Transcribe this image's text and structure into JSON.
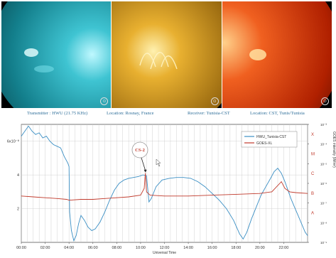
{
  "panels": [
    {
      "id": "sun-131",
      "base": "#0a3a40",
      "mid": "#1f9fb0",
      "hi": "#bff8ff",
      "badge": "⊙"
    },
    {
      "id": "sun-171",
      "base": "#3a2600",
      "mid": "#c8901a",
      "hi": "#fff1b0",
      "badge": "⊙"
    },
    {
      "id": "sun-304",
      "base": "#5a0c00",
      "mid": "#e0400c",
      "hi": "#ffd08a",
      "badge": "⊙"
    }
  ],
  "info": {
    "transmitter": "Transmitter : HWU (21.75 KHz)",
    "location_tx": "Location: Rosnay, France",
    "receiver": "Receiver: Tunisia-CST",
    "location_rx": "Location: CST, Tunis/Tunisia"
  },
  "chart_data": {
    "type": "line",
    "xlabel": "Universal Time",
    "xlim": [
      0,
      24
    ],
    "x_ticks": [
      "00:00",
      "02:00",
      "04:00",
      "06:00",
      "08:00",
      "10:00",
      "12:00",
      "14:00",
      "16:00",
      "18:00",
      "20:00",
      "22:00"
    ],
    "y_left_ticks": [
      {
        "label": "6x10⁻⁸",
        "value": 6
      },
      {
        "label": "4",
        "value": 4
      },
      {
        "label": "2",
        "value": 2
      }
    ],
    "y_left_lim": [
      0,
      7
    ],
    "y_right_label": "GOES intensity (W/m²)",
    "y_right_ticks": [
      "10⁻³",
      "10⁻⁴",
      "10⁻⁵",
      "10⁻⁶",
      "10⁻⁷",
      "10⁻⁸",
      "10⁻⁹"
    ],
    "y_right_class_letters": [
      {
        "label": "X",
        "color": "#c0392b"
      },
      {
        "label": "M",
        "color": "#c0392b"
      },
      {
        "label": "C",
        "color": "#c0392b"
      },
      {
        "label": "B",
        "color": "#c0392b"
      },
      {
        "label": "A",
        "color": "#c0392b"
      }
    ],
    "grid": true,
    "legend_position": "top-right",
    "annotation": {
      "text": "CS-2",
      "x": 10.4,
      "y": 4.1
    },
    "series": [
      {
        "name": "HWU_Tunisia-CST",
        "color": "#3b8fc4",
        "points": [
          [
            0.0,
            6.3
          ],
          [
            0.3,
            6.6
          ],
          [
            0.6,
            6.9
          ],
          [
            0.9,
            6.6
          ],
          [
            1.2,
            6.4
          ],
          [
            1.5,
            6.5
          ],
          [
            1.8,
            6.2
          ],
          [
            2.1,
            6.3
          ],
          [
            2.4,
            6.0
          ],
          [
            2.7,
            5.8
          ],
          [
            3.0,
            5.7
          ],
          [
            3.3,
            5.6
          ],
          [
            3.6,
            5.1
          ],
          [
            3.9,
            4.7
          ],
          [
            4.0,
            4.5
          ],
          [
            4.05,
            1.8
          ],
          [
            4.2,
            0.7
          ],
          [
            4.4,
            0.1
          ],
          [
            4.6,
            0.4
          ],
          [
            4.8,
            1.1
          ],
          [
            5.0,
            1.6
          ],
          [
            5.3,
            1.3
          ],
          [
            5.6,
            0.9
          ],
          [
            5.9,
            0.7
          ],
          [
            6.2,
            0.8
          ],
          [
            6.6,
            1.2
          ],
          [
            7.0,
            1.8
          ],
          [
            7.4,
            2.5
          ],
          [
            7.8,
            3.1
          ],
          [
            8.2,
            3.5
          ],
          [
            8.6,
            3.7
          ],
          [
            9.0,
            3.8
          ],
          [
            9.4,
            3.85
          ],
          [
            9.8,
            3.9
          ],
          [
            10.2,
            4.0
          ],
          [
            10.5,
            3.95
          ],
          [
            10.7,
            2.4
          ],
          [
            10.9,
            2.6
          ],
          [
            11.3,
            3.3
          ],
          [
            11.8,
            3.7
          ],
          [
            12.4,
            3.8
          ],
          [
            13.0,
            3.85
          ],
          [
            13.6,
            3.85
          ],
          [
            14.2,
            3.8
          ],
          [
            14.8,
            3.6
          ],
          [
            15.4,
            3.3
          ],
          [
            16.0,
            2.9
          ],
          [
            16.6,
            2.5
          ],
          [
            17.2,
            2.0
          ],
          [
            17.8,
            1.3
          ],
          [
            18.3,
            0.5
          ],
          [
            18.6,
            0.2
          ],
          [
            18.9,
            0.6
          ],
          [
            19.3,
            1.4
          ],
          [
            19.7,
            2.1
          ],
          [
            20.1,
            2.8
          ],
          [
            20.5,
            3.3
          ],
          [
            20.9,
            3.8
          ],
          [
            21.2,
            4.2
          ],
          [
            21.5,
            4.4
          ],
          [
            21.8,
            4.1
          ],
          [
            22.1,
            3.6
          ],
          [
            22.3,
            3.2
          ],
          [
            22.6,
            2.6
          ],
          [
            22.9,
            2.1
          ],
          [
            23.2,
            1.6
          ],
          [
            23.5,
            1.1
          ],
          [
            23.8,
            0.6
          ],
          [
            24.0,
            0.4
          ]
        ]
      },
      {
        "name": "GOES-XL",
        "color": "#c0392b",
        "points": [
          [
            0.0,
            2.75
          ],
          [
            1.0,
            2.7
          ],
          [
            2.0,
            2.65
          ],
          [
            3.0,
            2.6
          ],
          [
            3.8,
            2.55
          ],
          [
            4.0,
            2.5
          ],
          [
            5.0,
            2.55
          ],
          [
            6.0,
            2.55
          ],
          [
            7.0,
            2.6
          ],
          [
            8.0,
            2.65
          ],
          [
            9.0,
            2.7
          ],
          [
            10.0,
            2.8
          ],
          [
            10.3,
            3.2
          ],
          [
            10.4,
            4.1
          ],
          [
            10.5,
            3.0
          ],
          [
            10.8,
            2.8
          ],
          [
            12.0,
            2.75
          ],
          [
            14.0,
            2.75
          ],
          [
            16.0,
            2.8
          ],
          [
            18.0,
            2.85
          ],
          [
            20.0,
            2.9
          ],
          [
            21.0,
            3.0
          ],
          [
            21.8,
            3.6
          ],
          [
            22.1,
            3.2
          ],
          [
            22.5,
            3.0
          ],
          [
            23.0,
            2.95
          ],
          [
            24.0,
            2.9
          ]
        ]
      }
    ]
  }
}
